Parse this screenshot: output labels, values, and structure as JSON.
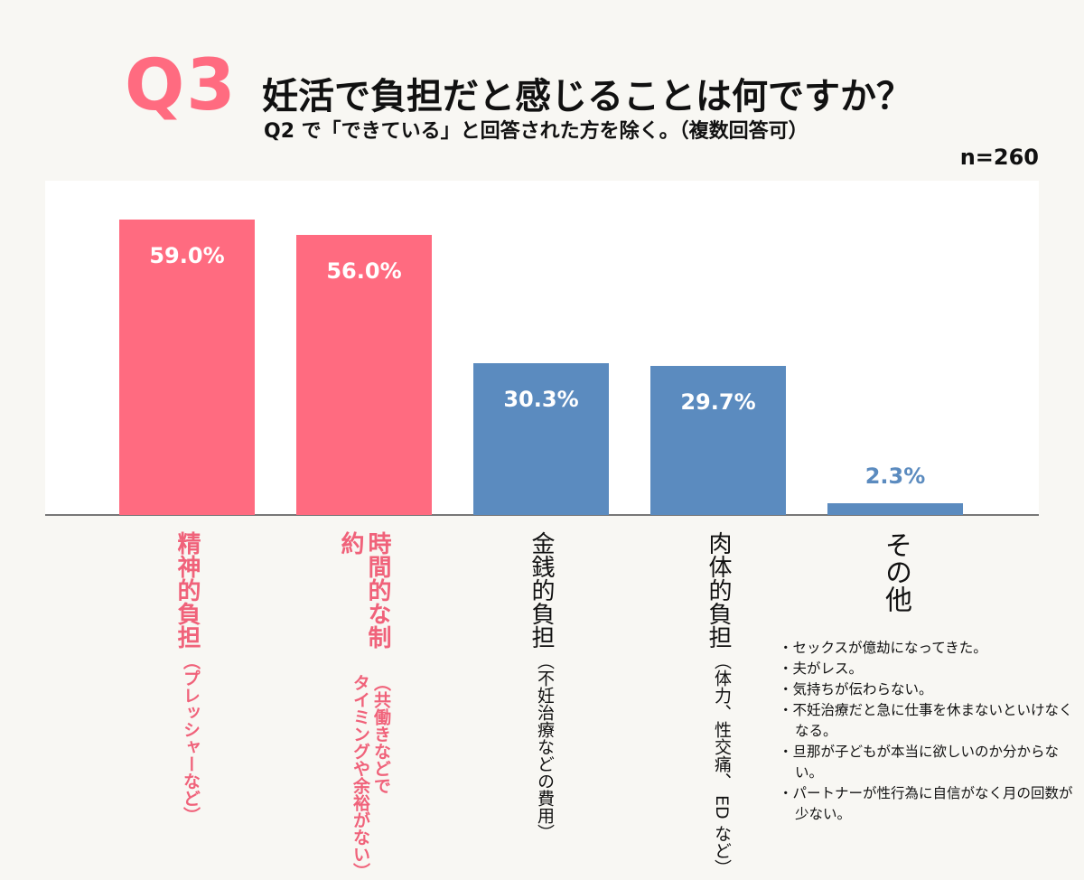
{
  "header": {
    "qnum": "Q3",
    "title": "妊活で負担だと感じることは何ですか？",
    "subtitle": "Q2 で「できている」と回答された方を除く。（複数回答可）",
    "n": "n=260"
  },
  "colors": {
    "pink": "#ff6b80",
    "blue": "#5b8bbf",
    "pink_text": "#f0627a",
    "blue_text": "#5b8bbf"
  },
  "chart_data": {
    "type": "bar",
    "categories": [
      "精神的負担（プレッシャーなど）",
      "時間的な制約（共働きなどでタイミングや余裕がない）",
      "金銭的負担（不妊治療などの費用）",
      "肉体的負担（体力、性交痛、ED など）",
      "その他"
    ],
    "labels": [
      {
        "main": "精神的負担",
        "sub": "（プレッシャーなど）",
        "color": "pink"
      },
      {
        "main": "時間的な制約",
        "sub": "（共働きなどで\nタイミングや余裕がない）",
        "color": "pink"
      },
      {
        "main": "金銭的負担",
        "sub": "（不妊治療などの費用）",
        "color": "black"
      },
      {
        "main": "肉体的負担",
        "sub": "（体力、性交痛、 ED など）",
        "color": "black"
      },
      {
        "main": "その他",
        "sub": "",
        "color": "black"
      }
    ],
    "values": [
      59.0,
      56.0,
      30.3,
      29.7,
      2.3
    ],
    "value_labels": [
      "59.0%",
      "56.0%",
      "30.3%",
      "29.7%",
      "2.3%"
    ],
    "bar_colors": [
      "pink",
      "pink",
      "blue",
      "blue",
      "blue"
    ],
    "unit": "%",
    "ylim": [
      0,
      67
    ],
    "grid": false,
    "legend": "none"
  },
  "other_comments": [
    "・セックスが億劫になってきた。",
    "・夫がレス。",
    "・気持ちが伝わらない。",
    "・不妊治療だと急に仕事を休まないといけなくなる。",
    "・旦那が子どもが本当に欲しいのか分からない。",
    "・パートナーが性行為に自信がなく月の回数が少ない。"
  ]
}
